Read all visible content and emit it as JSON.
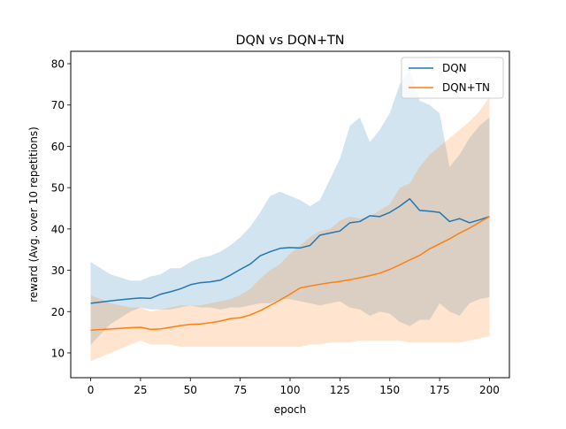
{
  "chart_data": {
    "type": "line",
    "title": "DQN vs DQN+TN",
    "xlabel": "epoch",
    "ylabel": "reward (Avg. over 10 repetitions)",
    "xlim": [
      -10,
      210
    ],
    "ylim": [
      4,
      83
    ],
    "xticks": [
      0,
      25,
      50,
      75,
      100,
      125,
      150,
      175,
      200
    ],
    "yticks": [
      10,
      20,
      30,
      40,
      50,
      60,
      70,
      80
    ],
    "grid": false,
    "legend_position": "top-right",
    "series": [
      {
        "name": "DQN",
        "color": "#1f77b4",
        "band_color": "#1f77b4",
        "x": [
          0,
          10,
          20,
          25,
          30,
          35,
          40,
          45,
          50,
          55,
          60,
          65,
          70,
          75,
          80,
          85,
          90,
          95,
          100,
          105,
          110,
          115,
          120,
          125,
          130,
          135,
          140,
          145,
          150,
          155,
          160,
          165,
          170,
          175,
          180,
          185,
          190,
          195,
          200
        ],
        "mean": [
          22,
          22.6,
          23.1,
          23.3,
          23.2,
          24.2,
          24.8,
          25.5,
          26.5,
          27.0,
          27.2,
          27.6,
          28.8,
          30.2,
          31.5,
          33.5,
          34.5,
          35.3,
          35.5,
          35.4,
          36.0,
          38.5,
          39.0,
          39.5,
          41.5,
          41.8,
          43.2,
          43.0,
          44.0,
          45.5,
          47.3,
          44.5,
          44.3,
          44.0,
          41.8,
          42.5,
          41.5,
          42.2,
          43.0
        ],
        "lower": [
          12,
          17,
          20,
          21,
          20.5,
          20.5,
          20.5,
          21,
          21.5,
          21,
          21,
          20.5,
          21,
          21,
          21.5,
          22,
          22,
          23,
          23,
          22.5,
          22,
          21.5,
          22,
          22.5,
          21,
          20.5,
          19,
          20,
          19.5,
          17.5,
          16.5,
          18,
          18,
          22,
          20,
          19,
          22,
          23,
          23.5
        ],
        "upper": [
          32,
          29,
          27.5,
          27.5,
          28.5,
          29,
          30.5,
          30.5,
          32,
          33,
          33.5,
          34.5,
          36,
          38,
          40.5,
          44,
          48,
          49,
          48,
          47,
          45.5,
          47,
          52,
          57,
          65,
          67,
          61,
          64,
          68,
          75,
          78.5,
          71,
          70,
          68,
          55,
          58,
          62,
          65,
          67
        ]
      },
      {
        "name": "DQN+TN",
        "color": "#ff7f0e",
        "band_color": "#ff7f0e",
        "x": [
          0,
          10,
          20,
          25,
          30,
          35,
          40,
          45,
          50,
          55,
          60,
          65,
          70,
          75,
          80,
          85,
          90,
          95,
          100,
          105,
          110,
          115,
          120,
          125,
          130,
          135,
          140,
          145,
          150,
          155,
          160,
          165,
          170,
          175,
          180,
          185,
          190,
          195,
          200
        ],
        "mean": [
          15.5,
          15.8,
          16.1,
          16.2,
          15.7,
          15.8,
          16.2,
          16.6,
          16.9,
          17.0,
          17.3,
          17.7,
          18.3,
          18.5,
          19.2,
          20.2,
          21.5,
          22.8,
          24.2,
          25.7,
          26.2,
          26.6,
          27.0,
          27.3,
          27.7,
          28.2,
          28.7,
          29.3,
          30.2,
          31.3,
          32.5,
          33.6,
          35.2,
          36.4,
          37.6,
          39.0,
          40.2,
          41.6,
          43.0
        ],
        "lower": [
          8,
          10,
          12,
          13,
          12,
          12,
          12,
          11.5,
          11.5,
          11.5,
          11.5,
          11.5,
          11.5,
          11.5,
          11.5,
          11.5,
          11.5,
          11.5,
          11.5,
          11.5,
          12,
          12,
          12.5,
          12.5,
          12.5,
          13,
          13,
          13,
          13,
          13,
          12.5,
          12.5,
          12.5,
          12.5,
          12.5,
          12.5,
          13,
          13.5,
          14
        ],
        "upper": [
          24,
          22,
          21,
          21,
          20,
          20.5,
          21,
          21.5,
          21.5,
          21.5,
          22,
          22.5,
          23,
          24,
          25.5,
          28,
          30,
          31.5,
          34,
          36,
          38,
          39.5,
          40,
          42,
          43,
          42.5,
          43,
          44.5,
          46,
          50,
          51,
          55,
          58,
          60,
          62,
          64,
          66,
          68.5,
          72
        ]
      }
    ]
  }
}
